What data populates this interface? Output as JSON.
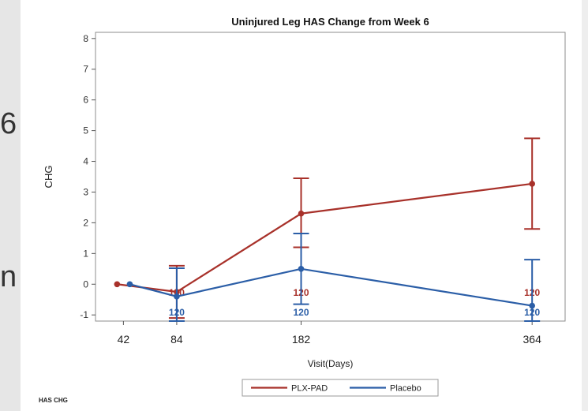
{
  "slide_fragments": [
    "6",
    "n"
  ],
  "footer": "HAS CHG",
  "chart_data": {
    "type": "line",
    "title": "Uninjured Leg HAS Change from Week 6",
    "xlabel": "Visit(Days)",
    "ylabel": "CHG",
    "x_ticks": [
      42,
      84,
      182,
      364
    ],
    "xlim": [
      20,
      390
    ],
    "ylim": [
      -1.2,
      8.2
    ],
    "y_ticks": [
      -1,
      0,
      1,
      2,
      3,
      4,
      5,
      6,
      7,
      8
    ],
    "legend_position": "bottom",
    "series": [
      {
        "name": "PLX-PAD",
        "color": "#a8312a",
        "points": [
          {
            "x": 37,
            "y": 0.0,
            "lo": null,
            "hi": null,
            "n": null
          },
          {
            "x": 84,
            "y": -0.25,
            "lo": -1.1,
            "hi": 0.6,
            "n": "120"
          },
          {
            "x": 182,
            "y": 2.3,
            "lo": 1.2,
            "hi": 3.45,
            "n": "120"
          },
          {
            "x": 364,
            "y": 3.27,
            "lo": 1.8,
            "hi": 4.75,
            "n": "120"
          }
        ]
      },
      {
        "name": "Placebo",
        "color": "#2b5ea7",
        "points": [
          {
            "x": 47,
            "y": 0.0,
            "lo": null,
            "hi": null,
            "n": null
          },
          {
            "x": 84,
            "y": -0.4,
            "lo": -1.2,
            "hi": 0.52,
            "n": "120"
          },
          {
            "x": 182,
            "y": 0.5,
            "lo": -0.65,
            "hi": 1.65,
            "n": "120"
          },
          {
            "x": 364,
            "y": -0.7,
            "lo": -1.2,
            "hi": 0.8,
            "n": "120"
          }
        ]
      }
    ]
  }
}
